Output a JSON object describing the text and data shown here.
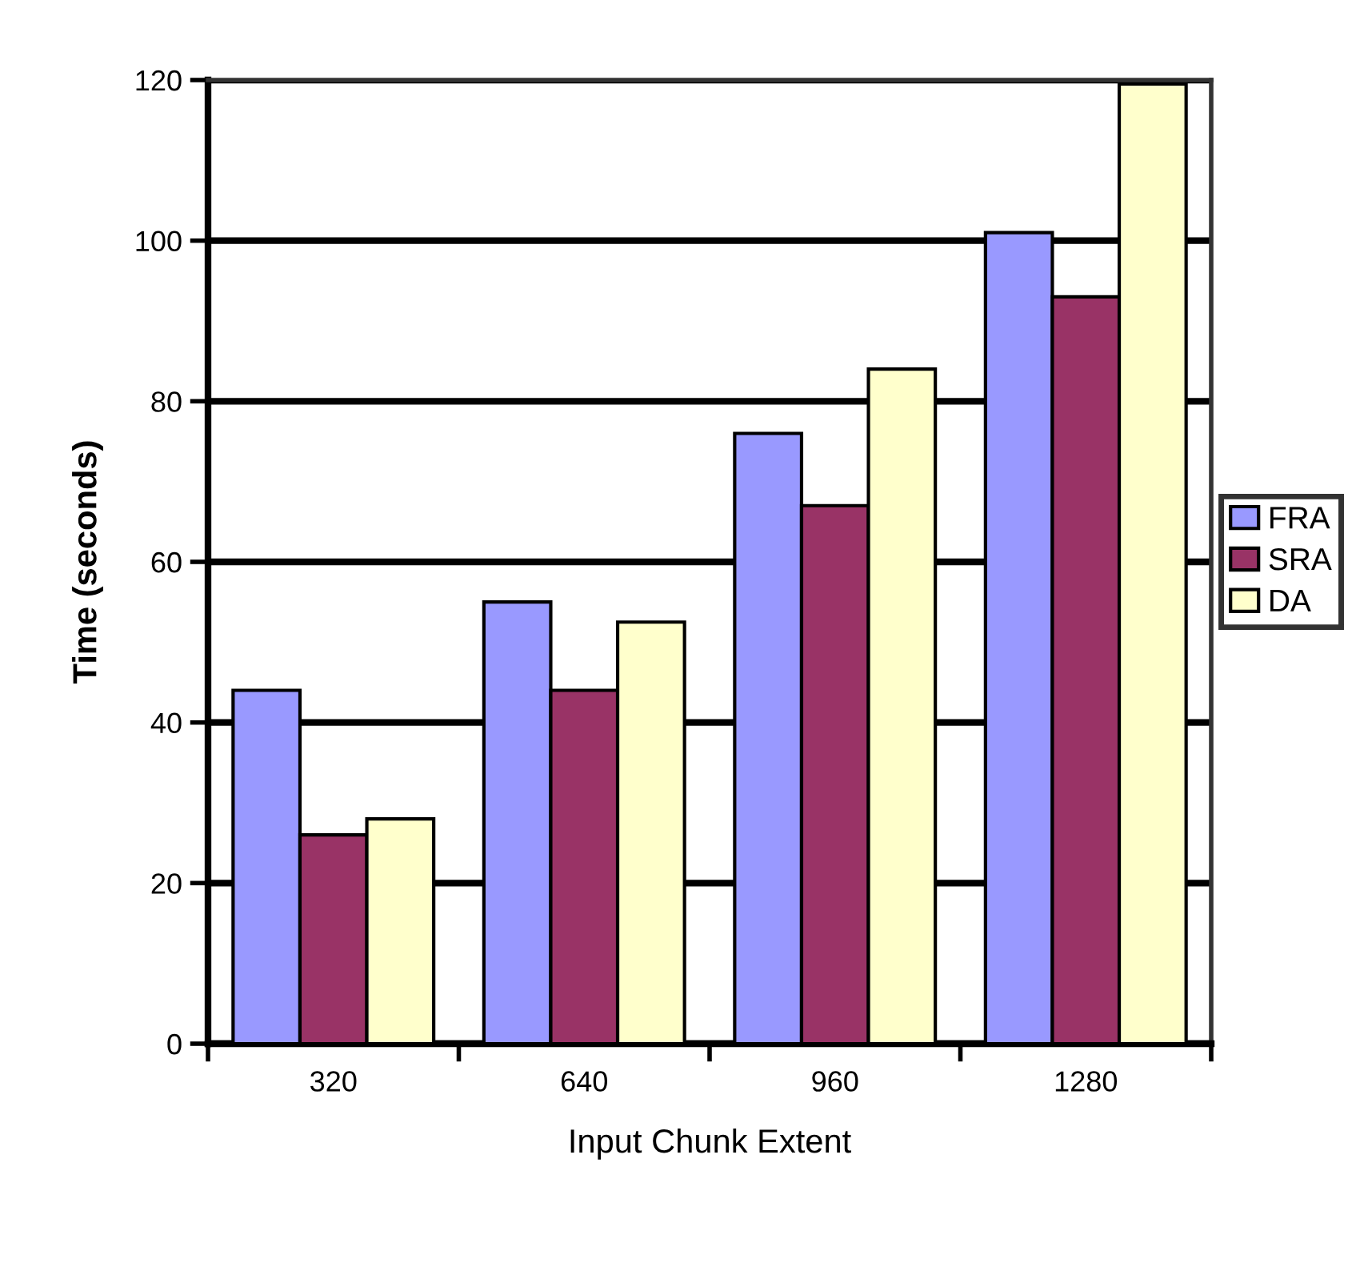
{
  "chart_data": {
    "type": "bar",
    "xlabel": "Input Chunk Extent",
    "ylabel": "Time (seconds)",
    "categories": [
      "320",
      "640",
      "960",
      "1280"
    ],
    "series": [
      {
        "name": "FRA",
        "color": "#9999ff",
        "values": [
          44,
          55,
          76,
          101
        ]
      },
      {
        "name": "SRA",
        "color": "#993366",
        "values": [
          26,
          44,
          67,
          93
        ]
      },
      {
        "name": "DA",
        "color": "#ffffcc",
        "values": [
          28,
          52.5,
          84,
          119.5
        ]
      }
    ],
    "ylim": [
      0,
      120
    ],
    "yticks": [
      0,
      20,
      40,
      60,
      80,
      100,
      120
    ],
    "grid": "y",
    "legend": "right"
  }
}
